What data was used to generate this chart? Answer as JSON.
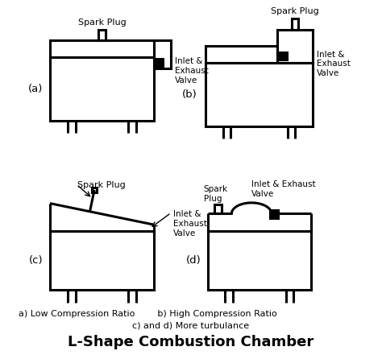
{
  "title": "L-Shape Combustion Chamber",
  "subtitle1": "a) Low Compression Ratio        b) High Compression Ratio",
  "subtitle2": "c) and d) More turbulance",
  "bg_color": "#ffffff",
  "lw": 2.2,
  "label_a": "(a)",
  "label_b": "(b)",
  "label_c": "(c)",
  "label_d": "(d)"
}
